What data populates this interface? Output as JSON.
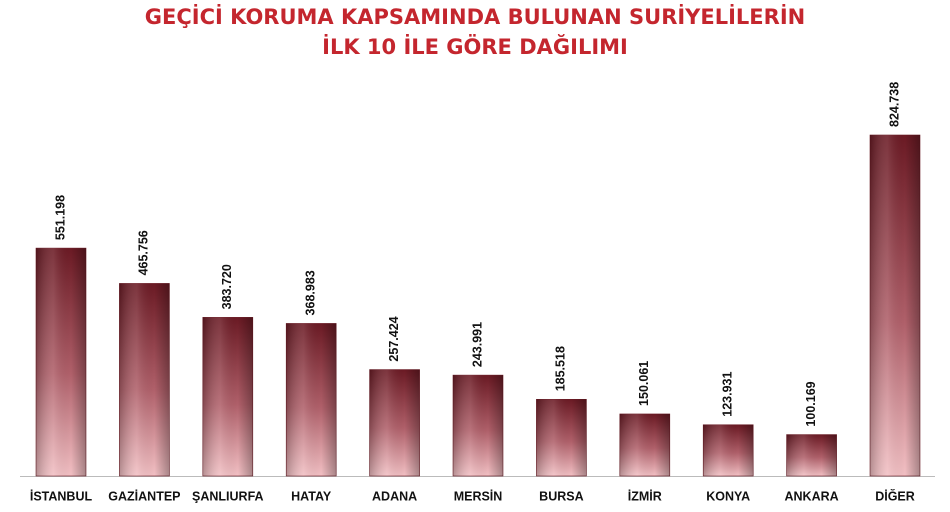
{
  "chart_data": {
    "type": "bar",
    "title_lines": [
      "GEÇİCİ KORUMA KAPSAMINDA BULUNAN SURİYELİLERİN",
      "İLK 10 İLE GÖRE DAĞILIMI"
    ],
    "categories": [
      "İSTANBUL",
      "GAZİANTEP",
      "ŞANLIURFA",
      "HATAY",
      "ADANA",
      "MERSİN",
      "BURSA",
      "İZMİR",
      "KONYA",
      "ANKARA",
      "DİĞER"
    ],
    "values": [
      551198,
      465756,
      383720,
      368983,
      257424,
      243991,
      185518,
      150061,
      123931,
      100169,
      824738
    ],
    "value_labels": [
      "551.198",
      "465.756",
      "383.720",
      "368.983",
      "257.424",
      "243.991",
      "185.518",
      "150.061",
      "123.931",
      "100.169",
      "824.738"
    ],
    "color": "#6b1a24"
  }
}
